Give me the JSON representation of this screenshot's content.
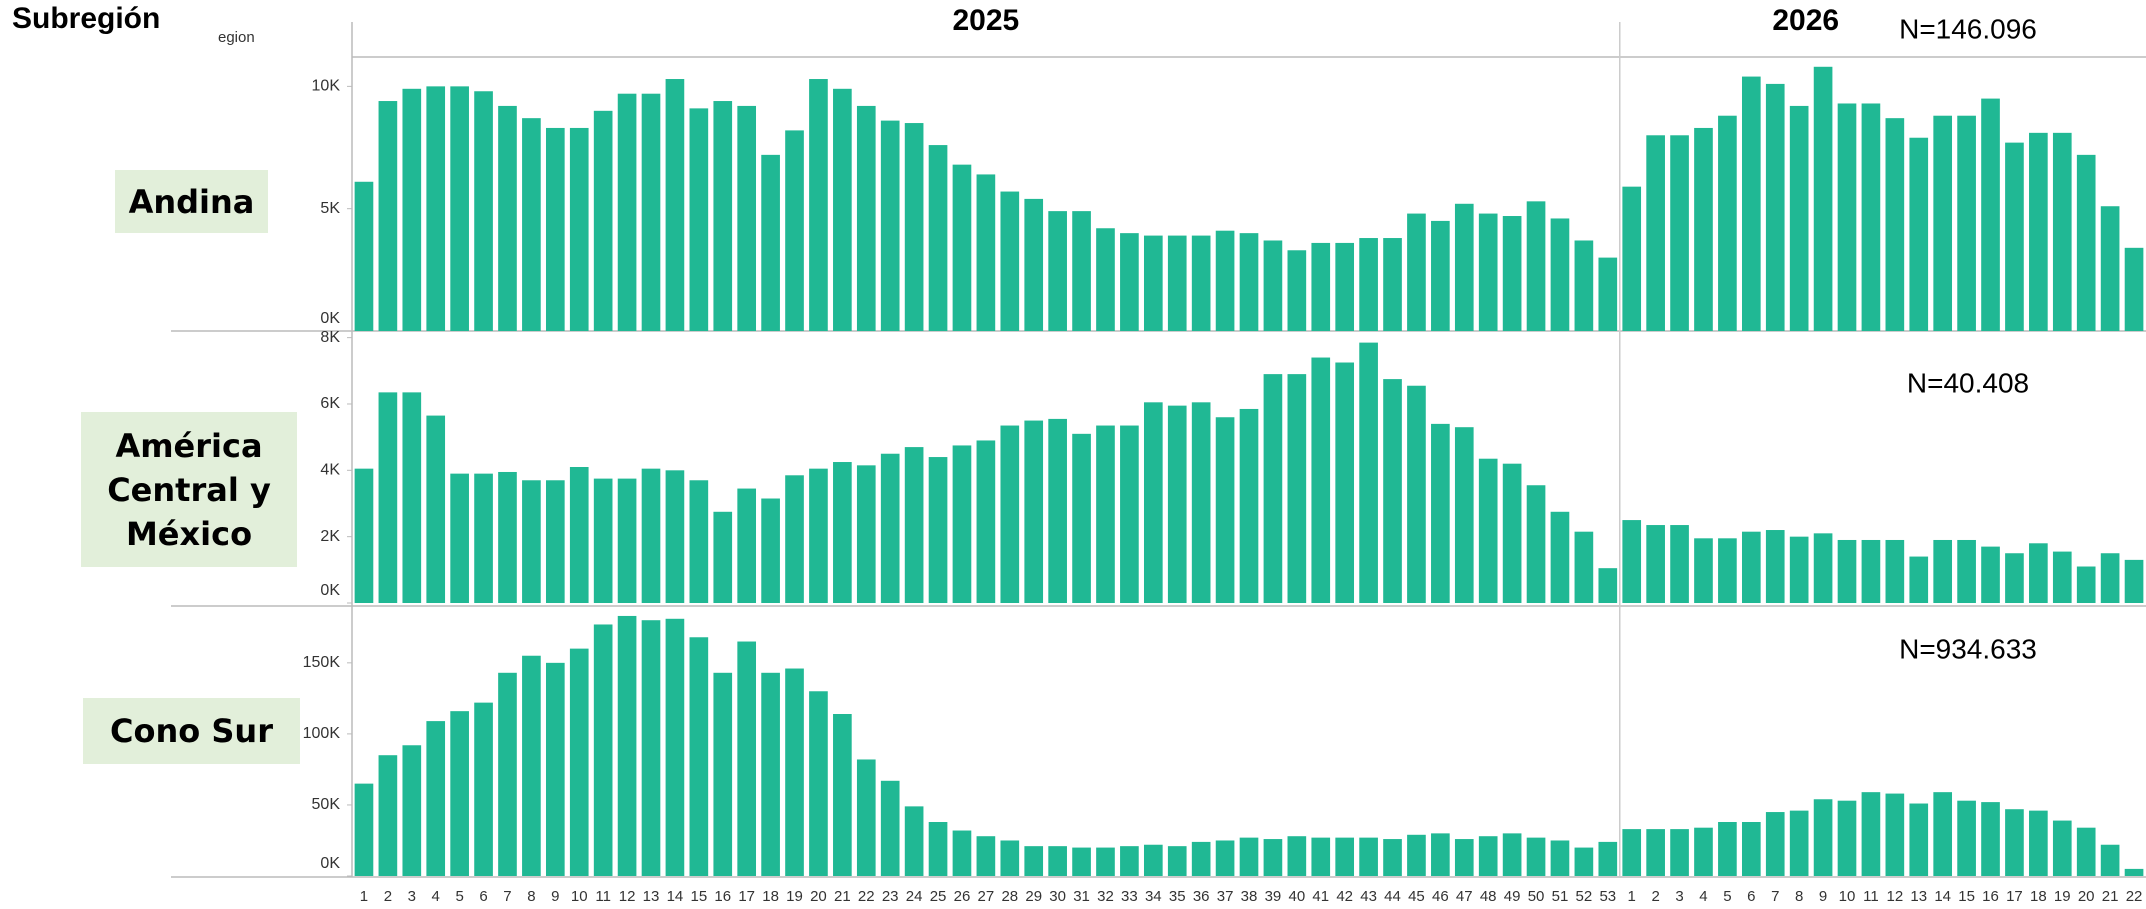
{
  "chart_data": {
    "type": "bar",
    "row_header": "Subregión",
    "axis_label": "egion",
    "color": "#20b894",
    "years": [
      {
        "name": "2025",
        "categories": [
          "1",
          "2",
          "3",
          "4",
          "5",
          "6",
          "7",
          "8",
          "9",
          "10",
          "11",
          "12",
          "13",
          "14",
          "15",
          "16",
          "17",
          "18",
          "19",
          "20",
          "21",
          "22",
          "23",
          "24",
          "25",
          "26",
          "27",
          "28",
          "29",
          "30",
          "31",
          "32",
          "33",
          "34",
          "35",
          "36",
          "37",
          "38",
          "39",
          "40",
          "41",
          "42",
          "43",
          "44",
          "45",
          "46",
          "47",
          "48",
          "49",
          "50",
          "51",
          "52",
          "53"
        ]
      },
      {
        "name": "2026",
        "categories": [
          "1",
          "2",
          "3",
          "4",
          "5",
          "6",
          "7",
          "8",
          "9",
          "10",
          "11",
          "12",
          "13",
          "14",
          "15",
          "16",
          "17",
          "18",
          "19",
          "20",
          "21",
          "22"
        ]
      }
    ],
    "panels": [
      {
        "name": "Andina",
        "n_label": "N=146.096",
        "ylim": [
          0,
          11200
        ],
        "yticks": [
          {
            "value": 0,
            "label": "0K"
          },
          {
            "value": 5000,
            "label": "5K"
          },
          {
            "value": 10000,
            "label": "10K"
          }
        ],
        "values": [
          [
            6100,
            9400,
            9900,
            10000,
            10000,
            9800,
            9200,
            8700,
            8300,
            8300,
            9000,
            9700,
            9700,
            10300,
            9100,
            9400,
            9200,
            7200,
            8200,
            10300,
            9900,
            9200,
            8600,
            8500,
            7600,
            6800,
            6400,
            5700,
            5400,
            4900,
            4900,
            4200,
            4000,
            3900,
            3900,
            3900,
            4100,
            4000,
            3700,
            3300,
            3600,
            3600,
            3800,
            3800,
            4800,
            4500,
            5200,
            4800,
            4700,
            5300,
            4600,
            3700,
            3000
          ],
          [
            5900,
            8000,
            8000,
            8300,
            8800,
            10400,
            10100,
            9200,
            10800,
            9300,
            9300,
            8700,
            7900,
            8800,
            8800,
            9500,
            7700,
            8100,
            8100,
            7200,
            5100,
            3400
          ]
        ]
      },
      {
        "name": "América Central y México",
        "n_label": "N=40.408",
        "ylim": [
          0,
          8200
        ],
        "yticks": [
          {
            "value": 0,
            "label": "0K"
          },
          {
            "value": 2000,
            "label": "2K"
          },
          {
            "value": 4000,
            "label": "4K"
          },
          {
            "value": 6000,
            "label": "6K"
          },
          {
            "value": 8000,
            "label": "8K"
          }
        ],
        "values": [
          [
            4050,
            6350,
            6350,
            5650,
            3900,
            3900,
            3950,
            3700,
            3700,
            4100,
            3750,
            3750,
            4050,
            4000,
            3700,
            2750,
            3450,
            3150,
            3850,
            4050,
            4250,
            4150,
            4500,
            4700,
            4400,
            4750,
            4900,
            5350,
            5500,
            5550,
            5100,
            5350,
            5350,
            6050,
            5950,
            6050,
            5600,
            5850,
            6900,
            6900,
            7400,
            7250,
            7850,
            6750,
            6550,
            5400,
            5300,
            4350,
            4200,
            3550,
            2750,
            2150,
            1050
          ],
          [
            2500,
            2350,
            2350,
            1950,
            1950,
            2150,
            2200,
            2000,
            2100,
            1900,
            1900,
            1900,
            1400,
            1900,
            1900,
            1700,
            1500,
            1800,
            1550,
            1100,
            1500,
            1300
          ]
        ]
      },
      {
        "name": "Cono Sur",
        "n_label": "N=934.633",
        "ylim": [
          0,
          190000
        ],
        "yticks": [
          {
            "value": 0,
            "label": "0K"
          },
          {
            "value": 50000,
            "label": "50K"
          },
          {
            "value": 100000,
            "label": "100K"
          },
          {
            "value": 150000,
            "label": "150K"
          }
        ],
        "values": [
          [
            65000,
            85000,
            92000,
            109000,
            116000,
            122000,
            143000,
            155000,
            150000,
            160000,
            177000,
            183000,
            180000,
            181000,
            168000,
            143000,
            165000,
            143000,
            146000,
            130000,
            114000,
            82000,
            67000,
            49000,
            38000,
            32000,
            28000,
            25000,
            21000,
            21000,
            20000,
            20000,
            21000,
            22000,
            21000,
            24000,
            25000,
            27000,
            26000,
            28000,
            27000,
            27000,
            27000,
            26000,
            29000,
            30000,
            26000,
            28000,
            30000,
            27000,
            25000,
            20000,
            24000
          ],
          [
            33000,
            33000,
            33000,
            34000,
            38000,
            38000,
            45000,
            46000,
            54000,
            53000,
            59000,
            58000,
            51000,
            59000,
            53000,
            52000,
            47000,
            46000,
            39000,
            34000,
            22000,
            5000
          ]
        ]
      }
    ]
  }
}
